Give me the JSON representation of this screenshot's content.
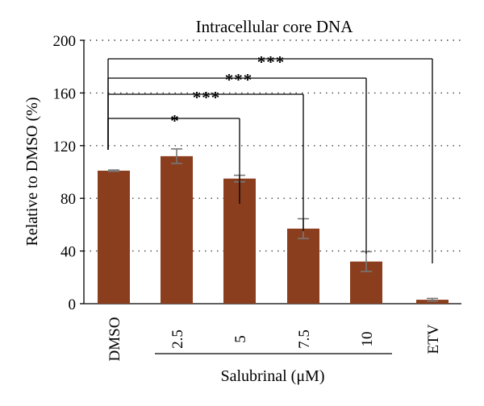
{
  "chart_data": {
    "type": "bar",
    "title": "Intracellular core DNA",
    "ylabel": "Relative to DMSO (%)",
    "group_label": "Salubrinal (μM)",
    "categories": [
      "DMSO",
      "2.5",
      "5",
      "7.5",
      "10",
      "ETV"
    ],
    "values": [
      101,
      112,
      95,
      57,
      32,
      3
    ],
    "errors": [
      0.5,
      5.5,
      2.5,
      7.5,
      7.5,
      1
    ],
    "ylim": [
      0,
      200
    ],
    "yticks": [
      0,
      40,
      80,
      120,
      160,
      200
    ],
    "grid": "dotted horizontal",
    "bar_color": "#8B3E1E",
    "error_color": "#777777",
    "significance": [
      {
        "from": "DMSO",
        "to": "5",
        "label": "*"
      },
      {
        "from": "DMSO",
        "to": "7.5",
        "label": "***"
      },
      {
        "from": "DMSO",
        "to": "10",
        "label": "***"
      },
      {
        "from": "DMSO",
        "to": "ETV",
        "label": "***"
      }
    ]
  }
}
